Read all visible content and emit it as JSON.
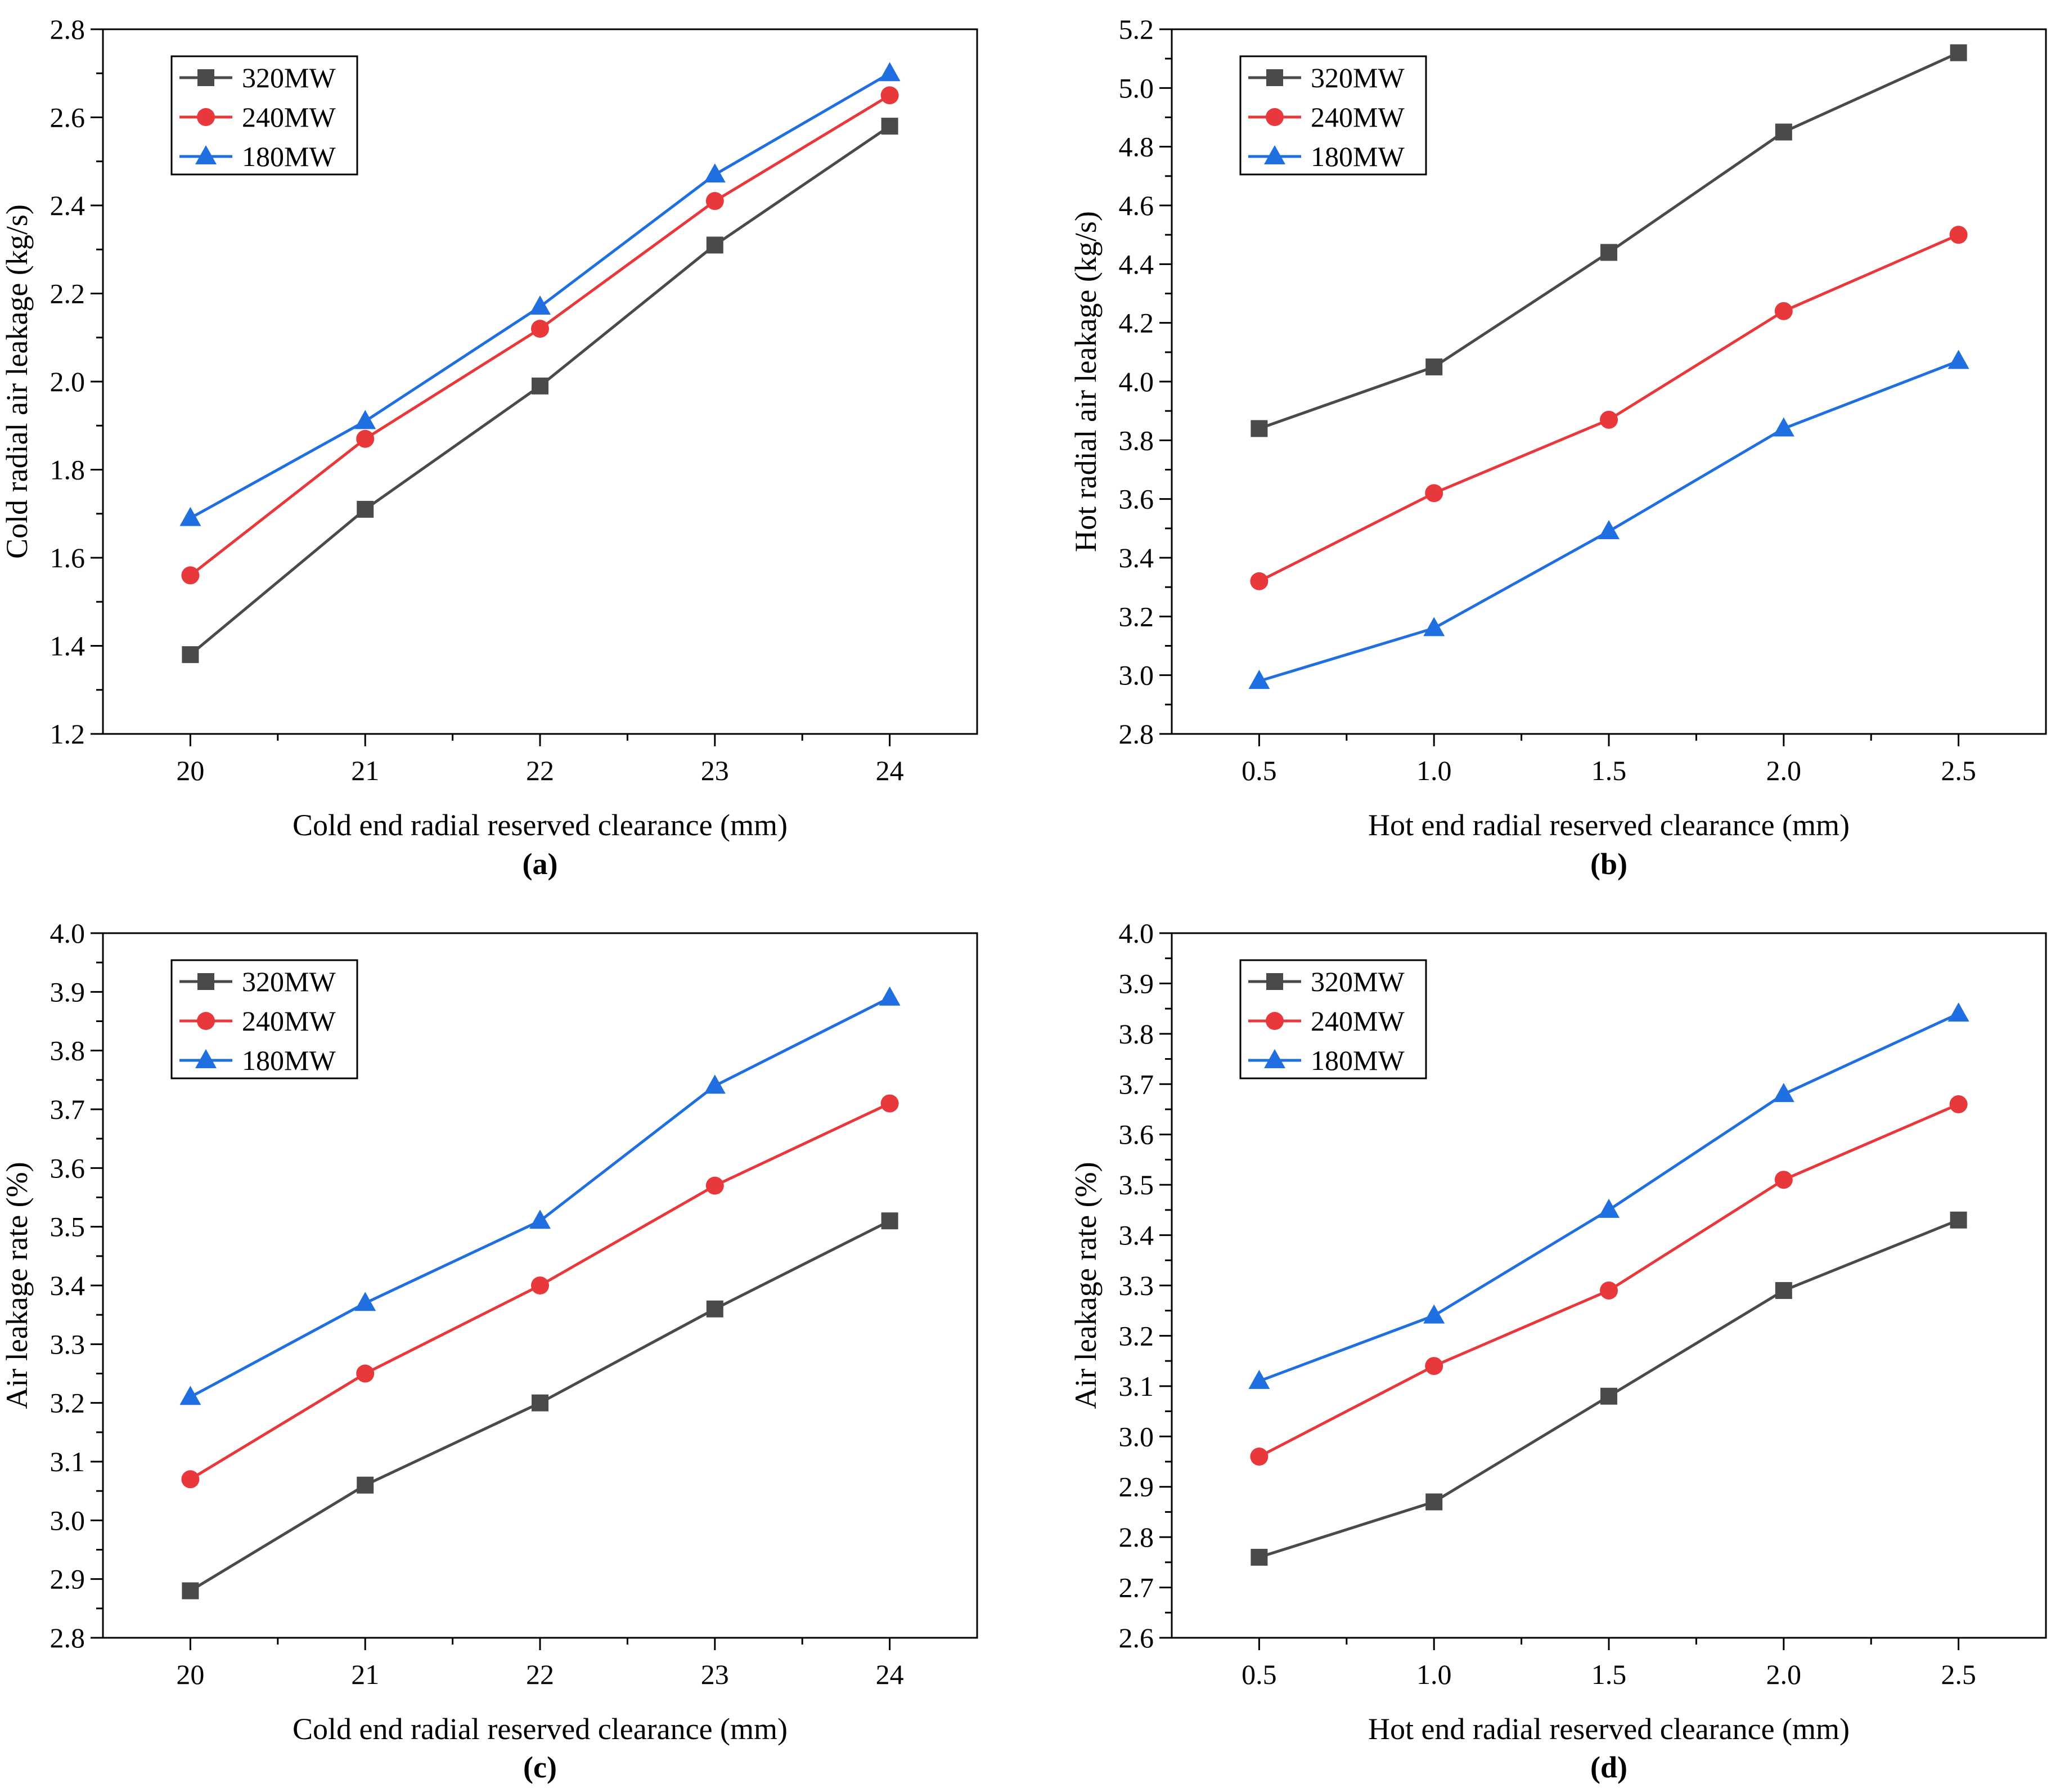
{
  "chart_data": [
    {
      "type": "line",
      "panel_label": "(a)",
      "xlabel": "Cold end radial reserved clearance (mm)",
      "ylabel": "Cold radial air leakage (kg/s)",
      "x": [
        20,
        21,
        22,
        23,
        24
      ],
      "xticks": [
        "20",
        "21",
        "22",
        "23",
        "24"
      ],
      "xlim": [
        19.5,
        24.5
      ],
      "ylim": [
        1.2,
        2.8
      ],
      "yticks": [
        "1.2",
        "1.4",
        "1.6",
        "1.8",
        "2.0",
        "2.2",
        "2.4",
        "2.6",
        "2.8"
      ],
      "legend": "top-left",
      "series": [
        {
          "name": "320MW",
          "values": [
            1.38,
            1.71,
            1.99,
            2.31,
            2.58
          ]
        },
        {
          "name": "240MW",
          "values": [
            1.56,
            1.87,
            2.12,
            2.41,
            2.65
          ]
        },
        {
          "name": "180MW",
          "values": [
            1.69,
            1.91,
            2.17,
            2.47,
            2.7
          ]
        }
      ]
    },
    {
      "type": "line",
      "panel_label": "(b)",
      "xlabel": "Hot end radial reserved clearance (mm)",
      "ylabel": "Hot radial air leakage (kg/s)",
      "x": [
        0.5,
        1.0,
        1.5,
        2.0,
        2.5
      ],
      "xticks": [
        "0.5",
        "1.0",
        "1.5",
        "2.0",
        "2.5"
      ],
      "xlim": [
        0.25,
        2.75
      ],
      "ylim": [
        2.8,
        5.2
      ],
      "yticks": [
        "2.8",
        "3.0",
        "3.2",
        "3.4",
        "3.6",
        "3.8",
        "4.0",
        "4.2",
        "4.4",
        "4.6",
        "4.8",
        "5.0",
        "5.2"
      ],
      "legend": "top-left",
      "series": [
        {
          "name": "320MW",
          "values": [
            3.84,
            4.05,
            4.44,
            4.85,
            5.12
          ]
        },
        {
          "name": "240MW",
          "values": [
            3.32,
            3.62,
            3.87,
            4.24,
            4.5
          ]
        },
        {
          "name": "180MW",
          "values": [
            2.98,
            3.16,
            3.49,
            3.84,
            4.07
          ]
        }
      ]
    },
    {
      "type": "line",
      "panel_label": "(c)",
      "xlabel": "Cold end radial reserved clearance (mm)",
      "ylabel": "Air leakage rate (%)",
      "x": [
        20,
        21,
        22,
        23,
        24
      ],
      "xticks": [
        "20",
        "21",
        "22",
        "23",
        "24"
      ],
      "xlim": [
        19.5,
        24.5
      ],
      "ylim": [
        2.8,
        4.0
      ],
      "yticks": [
        "2.8",
        "2.9",
        "3.0",
        "3.1",
        "3.2",
        "3.3",
        "3.4",
        "3.5",
        "3.6",
        "3.7",
        "3.8",
        "3.9",
        "4.0"
      ],
      "legend": "top-left",
      "series": [
        {
          "name": "320MW",
          "values": [
            2.88,
            3.06,
            3.2,
            3.36,
            3.51
          ]
        },
        {
          "name": "240MW",
          "values": [
            3.07,
            3.25,
            3.4,
            3.57,
            3.71
          ]
        },
        {
          "name": "180MW",
          "values": [
            3.21,
            3.37,
            3.51,
            3.74,
            3.89
          ]
        }
      ]
    },
    {
      "type": "line",
      "panel_label": "(d)",
      "xlabel": "Hot end radial reserved clearance (mm)",
      "ylabel": "Air leakage rate (%)",
      "x": [
        0.5,
        1.0,
        1.5,
        2.0,
        2.5
      ],
      "xticks": [
        "0.5",
        "1.0",
        "1.5",
        "2.0",
        "2.5"
      ],
      "xlim": [
        0.25,
        2.75
      ],
      "ylim": [
        2.6,
        4.0
      ],
      "yticks": [
        "2.6",
        "2.7",
        "2.8",
        "2.9",
        "3.0",
        "3.1",
        "3.2",
        "3.3",
        "3.4",
        "3.5",
        "3.6",
        "3.7",
        "3.8",
        "3.9",
        "4.0"
      ],
      "legend": "top-left",
      "series": [
        {
          "name": "320MW",
          "values": [
            2.76,
            2.87,
            3.08,
            3.29,
            3.43
          ]
        },
        {
          "name": "240MW",
          "values": [
            2.96,
            3.14,
            3.29,
            3.51,
            3.66
          ]
        },
        {
          "name": "180MW",
          "values": [
            3.11,
            3.24,
            3.45,
            3.68,
            3.84
          ]
        }
      ]
    }
  ],
  "series_styles": [
    {
      "name": "320MW",
      "color": "#4a4a4a",
      "marker": "square"
    },
    {
      "name": "240MW",
      "color": "#e8383c",
      "marker": "circle"
    },
    {
      "name": "180MW",
      "color": "#1f6fe0",
      "marker": "triangle"
    }
  ]
}
